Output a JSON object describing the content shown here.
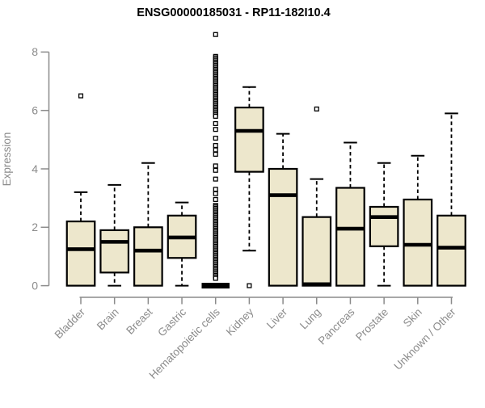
{
  "title": "ENSG00000185031 - RP11-182I10.4",
  "colors": {
    "box_fill": "#EDE7CC",
    "ink": "#000000",
    "axis_gray": "#8B8B8B",
    "background": "#FFFFFF"
  },
  "chart_data": {
    "type": "boxplot",
    "title": "ENSG00000185031 - RP11-182I10.4",
    "xlabel": "",
    "ylabel": "Expression",
    "ylim": [
      0,
      8.7
    ],
    "yticks": [
      0,
      2,
      4,
      6,
      8
    ],
    "grid": false,
    "legend": "none",
    "categories": [
      "Bladder",
      "Brain",
      "Breast",
      "Gastric",
      "Hematopoietic cells",
      "Kidney",
      "Liver",
      "Lung",
      "Pancreas",
      "Prostate",
      "Skin",
      "Unknown / Other"
    ],
    "series": [
      {
        "name": "Bladder",
        "whislo": 0,
        "q1": 0,
        "med": 1.25,
        "q3": 2.2,
        "whishi": 3.2,
        "outliers": [
          6.5
        ]
      },
      {
        "name": "Brain",
        "whislo": 0,
        "q1": 0.45,
        "med": 1.5,
        "q3": 1.9,
        "whishi": 3.45,
        "outliers": []
      },
      {
        "name": "Breast",
        "whislo": 0,
        "q1": 0,
        "med": 1.2,
        "q3": 2.0,
        "whishi": 4.2,
        "outliers": []
      },
      {
        "name": "Gastric",
        "whislo": 0,
        "q1": 0.95,
        "med": 1.65,
        "q3": 2.4,
        "whishi": 2.85,
        "outliers": []
      },
      {
        "name": "Hematopoietic cells",
        "whislo": 0,
        "q1": 0,
        "med": 0,
        "q3": 0,
        "whishi": 0,
        "outliers": [
          8.6,
          7.85,
          7.8,
          7.75,
          7.7,
          7.65,
          7.6,
          7.55,
          7.5,
          7.45,
          7.4,
          7.35,
          7.3,
          7.25,
          7.2,
          7.15,
          7.1,
          7.05,
          7.0,
          6.95,
          6.9,
          6.85,
          6.8,
          6.75,
          6.7,
          6.65,
          6.6,
          6.55,
          6.5,
          6.45,
          6.4,
          6.35,
          6.3,
          6.25,
          6.2,
          6.15,
          6.1,
          6.05,
          6.0,
          5.95,
          5.9,
          5.85,
          5.8,
          5.55,
          5.35,
          5.05,
          4.8,
          4.65,
          4.5,
          4.1,
          3.95,
          3.65,
          3.3,
          3.15,
          2.95,
          2.75,
          2.7,
          2.65,
          2.6,
          2.55,
          2.5,
          2.45,
          2.4,
          2.35,
          2.3,
          2.25,
          2.2,
          2.15,
          2.1,
          2.05,
          2.0,
          1.95,
          1.9,
          1.85,
          1.8,
          1.75,
          1.7,
          1.65,
          1.6,
          1.55,
          1.5,
          1.45,
          1.4,
          1.35,
          1.3,
          1.25,
          1.2,
          1.15,
          1.1,
          1.05,
          1.0,
          0.95,
          0.9,
          0.85,
          0.8,
          0.75,
          0.7,
          0.65,
          0.6,
          0.55,
          0.5,
          0.45,
          0.4,
          0.35,
          0.3,
          0.25
        ]
      },
      {
        "name": "Kidney",
        "whislo": 1.2,
        "q1": 3.9,
        "med": 5.3,
        "q3": 6.1,
        "whishi": 6.8,
        "outliers": [
          0
        ]
      },
      {
        "name": "Liver",
        "whislo": 0,
        "q1": 0,
        "med": 3.1,
        "q3": 4.0,
        "whishi": 5.2,
        "outliers": []
      },
      {
        "name": "Lung",
        "whislo": 0,
        "q1": 0,
        "med": 0.05,
        "q3": 2.35,
        "whishi": 3.65,
        "outliers": [
          6.05
        ]
      },
      {
        "name": "Pancreas",
        "whislo": 0,
        "q1": 0,
        "med": 1.95,
        "q3": 3.35,
        "whishi": 4.9,
        "outliers": []
      },
      {
        "name": "Prostate",
        "whislo": 0,
        "q1": 1.35,
        "med": 2.35,
        "q3": 2.7,
        "whishi": 4.2,
        "outliers": []
      },
      {
        "name": "Skin",
        "whislo": 0,
        "q1": 0,
        "med": 1.4,
        "q3": 2.95,
        "whishi": 4.45,
        "outliers": []
      },
      {
        "name": "Unknown / Other",
        "whislo": 0,
        "q1": 0,
        "med": 1.3,
        "q3": 2.4,
        "whishi": 5.9,
        "outliers": []
      }
    ]
  }
}
